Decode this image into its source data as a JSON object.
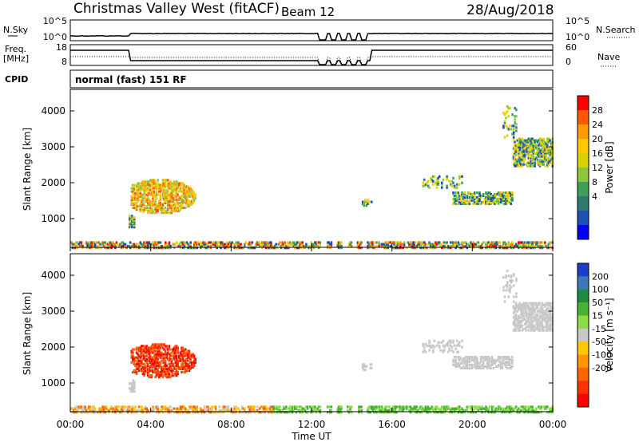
{
  "header": {
    "title": "Christmas Valley West (fitACF)",
    "beam": "Beam 12",
    "date": "28/Aug/2018"
  },
  "strips": {
    "nsky": {
      "label": "N.Sky",
      "ticks": [
        "10^5",
        "10^0"
      ],
      "right_label": "N.Search",
      "right_ticks": [
        "10^5",
        "10^0"
      ]
    },
    "freq": {
      "label_line1": "Freq.",
      "label_line2": "[MHz]",
      "ticks": [
        "18",
        "8"
      ],
      "right_label": "Nave",
      "right_ticks": [
        "60",
        "0"
      ]
    },
    "cpid": {
      "label": "CPID",
      "text": "normal (fast) 151 RF"
    }
  },
  "chart_data": [
    {
      "type": "heatmap",
      "panel": "power",
      "ylabel": "Slant Range [km]",
      "yticks": [
        "4000",
        "3000",
        "2000",
        "1000"
      ],
      "ylim": [
        200,
        4600
      ],
      "xlim": [
        0,
        24
      ],
      "colorbar": {
        "label": "Power [dB]",
        "ticks": [
          "28",
          "24",
          "20",
          "16",
          "12",
          "8",
          "4"
        ],
        "colors": [
          "#ff0000",
          "#ff5a00",
          "#ff9a00",
          "#ffc800",
          "#d7d200",
          "#8cc83c",
          "#3ca05a",
          "#2e7a6e",
          "#1e50b4",
          "#0000ff"
        ]
      }
    },
    {
      "type": "heatmap",
      "panel": "velocity",
      "ylabel": "Slant Range [km]",
      "yticks": [
        "4000",
        "3000",
        "2000",
        "1000"
      ],
      "ylim": [
        200,
        4600
      ],
      "xlim": [
        0,
        24
      ],
      "colorbar": {
        "label": "Velocity [m s⁻¹]",
        "ticks": [
          "200",
          "100",
          "50",
          "15",
          "-15",
          "-50",
          "-100",
          "-200"
        ],
        "colors": [
          "#1e3cc8",
          "#3c78b4",
          "#1e8c3c",
          "#46b432",
          "#8cdc46",
          "#c8c8c8",
          "#ffc800",
          "#ff9600",
          "#ff6400",
          "#ff3200",
          "#ff0000"
        ]
      }
    }
  ],
  "xaxis": {
    "label": "Time UT",
    "ticks": [
      "00:00",
      "04:00",
      "08:00",
      "12:00",
      "16:00",
      "20:00",
      "00:00"
    ]
  }
}
